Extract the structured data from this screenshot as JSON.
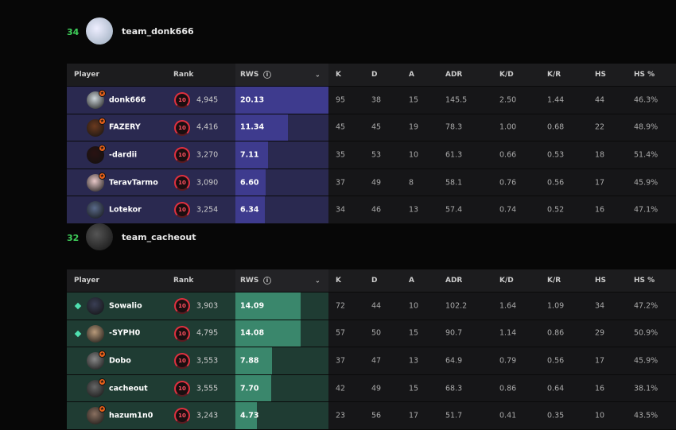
{
  "columns": {
    "player": "Player",
    "rank": "Rank",
    "rws": "RWS",
    "k": "K",
    "d": "D",
    "a": "A",
    "adr": "ADR",
    "kd": "K/D",
    "kr": "K/R",
    "hs": "HS",
    "hsp": "HS %"
  },
  "icons": {
    "info": "info-icon",
    "sort": "chevron-down-icon",
    "level": "skill-level-10-icon",
    "premium": "premium-star-icon",
    "party": "party-diamond-icon"
  },
  "rws_max": 20.13,
  "teams": [
    {
      "score": "34",
      "name": "team_donk666",
      "colors": {
        "row": "#2a2950",
        "bar": "#3e3b8e"
      },
      "players": [
        {
          "name": "donk666",
          "level": "10",
          "elo": "4,945",
          "rws": "20.13",
          "k": "95",
          "d": "38",
          "a": "15",
          "adr": "145.5",
          "kd": "2.50",
          "kr": "1.44",
          "hs": "44",
          "hsp": "46.3%",
          "premium": true,
          "party": false
        },
        {
          "name": "FAZERY",
          "level": "10",
          "elo": "4,416",
          "rws": "11.34",
          "k": "45",
          "d": "45",
          "a": "19",
          "adr": "78.3",
          "kd": "1.00",
          "kr": "0.68",
          "hs": "22",
          "hsp": "48.9%",
          "premium": true,
          "party": false
        },
        {
          "name": "-dardii",
          "level": "10",
          "elo": "3,270",
          "rws": "7.11",
          "k": "35",
          "d": "53",
          "a": "10",
          "adr": "61.3",
          "kd": "0.66",
          "kr": "0.53",
          "hs": "18",
          "hsp": "51.4%",
          "premium": true,
          "party": false
        },
        {
          "name": "TeravTarmo",
          "level": "10",
          "elo": "3,090",
          "rws": "6.60",
          "k": "37",
          "d": "49",
          "a": "8",
          "adr": "58.1",
          "kd": "0.76",
          "kr": "0.56",
          "hs": "17",
          "hsp": "45.9%",
          "premium": true,
          "party": false
        },
        {
          "name": "Lotekor",
          "level": "10",
          "elo": "3,254",
          "rws": "6.34",
          "k": "34",
          "d": "46",
          "a": "13",
          "adr": "57.4",
          "kd": "0.74",
          "kr": "0.52",
          "hs": "16",
          "hsp": "47.1%",
          "premium": false,
          "party": false
        }
      ]
    },
    {
      "score": "32",
      "name": "team_cacheout",
      "colors": {
        "row": "#1f3c33",
        "bar": "#3a876c"
      },
      "players": [
        {
          "name": "Sowalio",
          "level": "10",
          "elo": "3,903",
          "rws": "14.09",
          "k": "72",
          "d": "44",
          "a": "10",
          "adr": "102.2",
          "kd": "1.64",
          "kr": "1.09",
          "hs": "34",
          "hsp": "47.2%",
          "premium": false,
          "party": true
        },
        {
          "name": "-SYPH0",
          "level": "10",
          "elo": "4,795",
          "rws": "14.08",
          "k": "57",
          "d": "50",
          "a": "15",
          "adr": "90.7",
          "kd": "1.14",
          "kr": "0.86",
          "hs": "29",
          "hsp": "50.9%",
          "premium": false,
          "party": true
        },
        {
          "name": "Dobo",
          "level": "10",
          "elo": "3,553",
          "rws": "7.88",
          "k": "37",
          "d": "47",
          "a": "13",
          "adr": "64.9",
          "kd": "0.79",
          "kr": "0.56",
          "hs": "17",
          "hsp": "45.9%",
          "premium": true,
          "party": false
        },
        {
          "name": "cacheout",
          "level": "10",
          "elo": "3,555",
          "rws": "7.70",
          "k": "42",
          "d": "49",
          "a": "15",
          "adr": "68.3",
          "kd": "0.86",
          "kr": "0.64",
          "hs": "16",
          "hsp": "38.1%",
          "premium": true,
          "party": false
        },
        {
          "name": "hazum1n0",
          "level": "10",
          "elo": "3,243",
          "rws": "4.73",
          "k": "23",
          "d": "56",
          "a": "17",
          "adr": "51.7",
          "kd": "0.41",
          "kr": "0.35",
          "hs": "10",
          "hsp": "43.5%",
          "premium": true,
          "party": false
        }
      ]
    }
  ]
}
